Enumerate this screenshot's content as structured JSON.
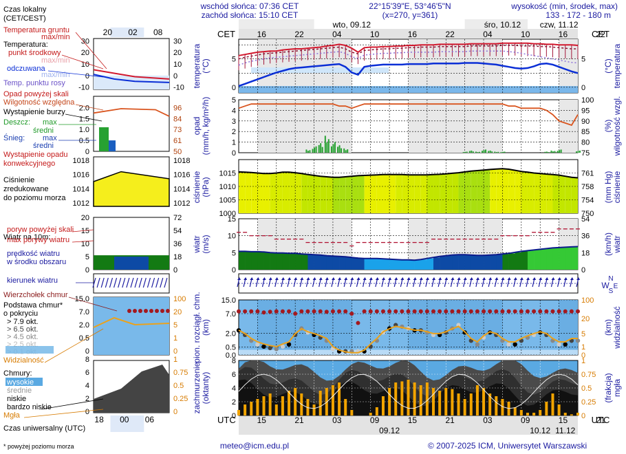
{
  "header": {
    "sunrise": "wschód słońca: 07:36 CET",
    "sunset": "zachód słońca: 15:10 CET",
    "coords": "22°15'39\"E, 53°46'5\"N",
    "grid": "(x=270, y=361)",
    "elev_title": "wysokość (min, środek, max)",
    "elev_values": "133 - 172 - 180 m"
  },
  "footer": {
    "email": "meteo@icm.edu.pl",
    "copyright": "© 2007-2025 ICM, Uniwersytet Warszawski",
    "note": "* powyżej poziomu morza"
  },
  "left_legend": {
    "time_local": [
      "Czas lokalny",
      "(CET/CEST)"
    ],
    "ground_temp": [
      "Temperatura gruntu",
      "max/min"
    ],
    "temperature": "Temperatura:",
    "midpoint": "punkt środkowy",
    "maxmin": "max/min",
    "felt": "odczuwana",
    "felt_maxmin": "max/min",
    "dew": "Temp. punktu rosy",
    "precip_above": "Opad powyżej skali",
    "humidity": "Wilgotność względna",
    "storm": "Wystąpienie burzy",
    "rain": "Deszcz:",
    "snow": "Śnieg:",
    "max": "max",
    "mean": "średni",
    "precip_occurrence": [
      "Wystąpienie opadu",
      "konwekcyjnego"
    ],
    "pressure": [
      "Ciśnienie",
      "zredukowane",
      "do poziomu morza"
    ],
    "wind10": "Wiatr na 10m:",
    "gust_above": "poryw powyżej skali",
    "gust_max": "max porywy wiatru",
    "wind_speed": [
      "prędkość wiatru",
      "w środku obszaru"
    ],
    "wind_dir": "kierunek wiatru",
    "cloud_top": "Wierzchołek chmur",
    "cloud_base": [
      "Podstawa chmur*",
      "o pokryciu"
    ],
    "okta": [
      "> 7.9 okt.",
      "> 6.5 okt.",
      "> 4.5 okt.",
      "> 2.5 okt.",
      "> 0.1 okt."
    ],
    "visibility": "Widzialność",
    "clouds": "Chmury:",
    "high": "wysokie",
    "middle": "średnie",
    "low": "niskie",
    "very_low": "bardzo niskie",
    "fog": "Mgła",
    "utc": "Czas uniwersalny (UTC)",
    "top_hours": [
      "20",
      "02",
      "08"
    ],
    "bottom_hours": [
      "18",
      "00",
      "06"
    ],
    "temp_ticks": [
      "30",
      "20",
      "10",
      "0",
      "-10"
    ],
    "precip_ticks": [
      "2.0",
      "1.5",
      "1.0",
      "0.5",
      "0"
    ],
    "hum_ticks": [
      "96",
      "84",
      "73",
      "61",
      "50"
    ],
    "press_ticks": [
      "1018",
      "1016",
      "1014",
      "1012"
    ],
    "wind_ticks": [
      "20",
      "15",
      "10",
      "5",
      "0"
    ],
    "wind_kmh": [
      "72",
      "54",
      "36",
      "18",
      "0"
    ],
    "cb_ticks": [
      "15.0",
      "7.0",
      "2.0",
      "0.5",
      "0"
    ],
    "vis_ticks": [
      "100",
      "20",
      "5",
      "1",
      "0"
    ],
    "cc_ticks": [
      "8",
      "6",
      "4",
      "2",
      "0"
    ],
    "fog_ticks": [
      "1",
      "0.75",
      "0.5",
      "0.25",
      "0"
    ]
  },
  "main": {
    "cet": "CET",
    "utc": "UTC",
    "days_top": [
      "wto, 09.12",
      "śro, 10.12",
      "czw, 11.12"
    ],
    "days_bottom": [
      "09.12",
      "10.12",
      "11.12"
    ],
    "top_hours": [
      "16",
      "22",
      "04",
      "10",
      "16",
      "22",
      "04",
      "10",
      "16",
      "22",
      "04",
      "10",
      "16"
    ],
    "bottom_hours": [
      "15",
      "21",
      "03",
      "09",
      "15",
      "21",
      "03",
      "09",
      "15",
      "21",
      "03",
      "09",
      "15"
    ],
    "labels": {
      "temp": [
        "temperatura",
        "(°C)"
      ],
      "precip": [
        "opad",
        "(mm/h, kg/m²/h)"
      ],
      "humidity": [
        "wilgotność wzgl.",
        "(%)"
      ],
      "pressure": [
        "ciśnienie",
        "(hPa)"
      ],
      "pressure_mm": [
        "ciśnienie",
        "(mm Hg)"
      ],
      "wind": [
        "wiatr",
        "(m/s)"
      ],
      "wind_kmh": [
        "wiatr",
        "(km/h)"
      ],
      "clouds": [
        "pion. rozciągł. chm.",
        "(km)"
      ],
      "visibility": [
        "widzialność",
        "(km)"
      ],
      "cover": [
        "zachmurzenie",
        "(oktanty)"
      ],
      "fog": [
        "mgła",
        "(frakcja)"
      ]
    },
    "wind_compass": [
      "N",
      "W",
      "E",
      "S"
    ]
  },
  "chart_data": {
    "type": "meteogram",
    "x_hours_utc": {
      "start": 12,
      "end": 66,
      "step": 1
    },
    "night_bands": [
      [
        15,
        30
      ],
      [
        39,
        54
      ],
      [
        63,
        66
      ]
    ],
    "temperature": {
      "ylim": [
        -1,
        8.5
      ],
      "ticks": [
        0,
        5
      ],
      "max": [
        5.6,
        5.8,
        6.0,
        6.2,
        6.3,
        6.4,
        6.4,
        6.6,
        6.7,
        6.8,
        6.8,
        6.9,
        7.0,
        7.1,
        7.3,
        7.4,
        7.6,
        7.4,
        6.9,
        6.2,
        7.0,
        7.1,
        7.1,
        7.2,
        7.2,
        7.3,
        7.3,
        7.4,
        7.4,
        7.5,
        7.5,
        7.5,
        7.6,
        7.6,
        7.6,
        7.6,
        7.6,
        7.7,
        7.7,
        7.7,
        7.7,
        7.7,
        7.8,
        7.8,
        7.8,
        7.8,
        7.8,
        7.7,
        7.7,
        7.6,
        7.6,
        7.5,
        7.5,
        7.5,
        7.4
      ],
      "mid": [
        5.0,
        5.3,
        5.5,
        5.7,
        5.9,
        6.0,
        6.1,
        6.2,
        6.3,
        6.4,
        6.5,
        6.6,
        6.7,
        6.8,
        6.9,
        7.0,
        7.1,
        6.8,
        6.2,
        5.9,
        6.5,
        6.6,
        6.7,
        6.8,
        6.8,
        6.9,
        6.9,
        7.0,
        7.0,
        7.1,
        7.1,
        7.1,
        7.2,
        7.2,
        7.2,
        7.2,
        7.2,
        7.3,
        7.3,
        7.3,
        7.3,
        7.3,
        7.4,
        7.4,
        7.4,
        7.3,
        7.3,
        7.3,
        7.2,
        7.2,
        7.1,
        7.0,
        6.9,
        6.8,
        6.8
      ],
      "min": [
        4.4,
        4.7,
        5.0,
        5.2,
        5.4,
        5.6,
        5.7,
        5.8,
        5.9,
        6.0,
        6.1,
        6.2,
        6.3,
        6.4,
        6.5,
        6.6,
        6.7,
        6.4,
        5.8,
        5.5,
        6.1,
        6.2,
        6.3,
        6.4,
        6.4,
        6.5,
        6.5,
        6.6,
        6.6,
        6.7,
        6.7,
        6.7,
        6.8,
        6.8,
        6.8,
        6.8,
        6.8,
        6.9,
        6.9,
        6.9,
        6.9,
        6.9,
        7.0,
        7.0,
        7.0,
        6.9,
        6.9,
        6.9,
        6.8,
        6.8,
        6.7,
        6.6,
        6.5,
        6.4,
        6.4
      ],
      "felt": [
        0.2,
        0.6,
        1.0,
        1.4,
        1.8,
        2.2,
        2.6,
        2.9,
        3.2,
        3.4,
        3.5,
        3.6,
        3.7,
        3.8,
        3.9,
        4.0,
        4.1,
        3.6,
        2.6,
        2.2,
        3.6,
        3.8,
        3.9,
        4.0,
        4.0,
        4.0,
        4.0,
        4.1,
        4.1,
        4.1,
        4.1,
        4.2,
        4.2,
        4.2,
        4.2,
        4.2,
        4.3,
        4.3,
        4.3,
        4.2,
        4.1,
        4.0,
        3.8,
        3.6,
        3.4,
        3.3,
        3.4,
        3.7,
        4.1,
        4.2,
        4.0,
        3.6,
        3.2,
        2.8,
        2.5
      ],
      "dew": [
        4.5,
        4.9,
        5.2,
        5.4,
        5.6,
        5.8,
        5.9,
        6.0,
        6.1,
        6.2,
        6.3,
        6.4,
        6.5,
        6.6,
        6.7,
        6.8,
        6.9,
        6.6,
        6.0,
        5.7,
        6.3,
        6.4,
        6.5,
        6.6,
        6.6,
        6.7,
        6.7,
        6.8,
        6.8,
        6.8,
        6.8,
        6.8,
        6.9,
        6.9,
        6.9,
        6.9,
        6.9,
        7.0,
        7.0,
        7.0,
        7.0,
        7.0,
        7.0,
        6.9,
        6.8,
        6.6,
        6.4,
        6.2,
        6.0,
        5.8,
        5.6,
        5.4,
        5.2,
        5.0,
        4.9
      ]
    },
    "precipitation": {
      "ylim": [
        0,
        5
      ],
      "ticks": [
        0,
        1,
        2,
        3,
        4,
        5
      ],
      "rain_mean": [
        0,
        0,
        0,
        0,
        0,
        0,
        0,
        0,
        0,
        0,
        0,
        0.3,
        0.6,
        0.9,
        1.6,
        1.0,
        0.7,
        0.4,
        0,
        0,
        0,
        0,
        0,
        0,
        0,
        0,
        0,
        0,
        0,
        0,
        0,
        0,
        0,
        0,
        0,
        0,
        0.1,
        0.2,
        0.1,
        0.3,
        0.2,
        0.1,
        0.1,
        0,
        0,
        0,
        0,
        0,
        0,
        0.1,
        0.2,
        0.3,
        0,
        0,
        0.2
      ]
    },
    "humidity": {
      "ylim": [
        75,
        100
      ],
      "ticks": [
        75,
        80,
        85,
        90,
        95,
        100
      ],
      "values": [
        96,
        97,
        98,
        98,
        98,
        98,
        98,
        98,
        98,
        98,
        98,
        98,
        98,
        98,
        98,
        98,
        97,
        97,
        96,
        97,
        98,
        98,
        98,
        98,
        98,
        98,
        98,
        98,
        98,
        98,
        98,
        98,
        98,
        98,
        98,
        98,
        98,
        98,
        98,
        98,
        98,
        98,
        98,
        97,
        97,
        96,
        96,
        96,
        96,
        95,
        93,
        90,
        89,
        88,
        93
      ]
    },
    "pressure": {
      "ylim": [
        1000,
        1020
      ],
      "ticks": [
        1000,
        1005,
        1010,
        1015
      ],
      "values": [
        1015.4,
        1015.3,
        1015.2,
        1015.0,
        1014.8,
        1014.8,
        1015.0,
        1015.3,
        1015.3,
        1015.1,
        1014.8,
        1014.4,
        1014.1,
        1013.8,
        1013.6,
        1013.4,
        1013.4,
        1013.6,
        1013.8,
        1014.0,
        1014.1,
        1014.2,
        1014.3,
        1014.4,
        1014.4,
        1014.4,
        1014.4,
        1014.3,
        1014.3,
        1014.3,
        1014.3,
        1014.4,
        1014.5,
        1014.7,
        1014.9,
        1015.1,
        1015.4,
        1015.7,
        1015.9,
        1016.1,
        1016.3,
        1016.5,
        1016.6,
        1016.4,
        1016.0,
        1015.6,
        1015.3,
        1015.0,
        1014.8,
        1014.6,
        1014.4,
        1014.2,
        1013.8,
        1013.4,
        1013.2
      ]
    },
    "wind": {
      "ylim": [
        0,
        15
      ],
      "ticks": [
        0,
        5,
        10,
        15
      ],
      "gust_max": [
        11,
        11,
        10,
        10,
        10,
        10,
        9,
        9,
        9,
        9,
        9,
        8,
        8,
        8,
        8,
        8,
        8,
        8,
        7,
        8,
        8,
        8,
        8,
        8,
        8,
        8,
        8,
        8,
        8,
        8,
        8,
        9,
        9,
        9,
        9,
        9,
        9,
        9,
        9,
        9,
        9,
        9,
        10,
        10,
        10,
        10,
        10,
        11,
        11,
        11,
        11,
        12,
        12,
        12,
        12
      ],
      "speed": [
        5.4,
        5.4,
        5.3,
        5.3,
        5.2,
        5.0,
        4.9,
        4.9,
        4.8,
        4.8,
        4.6,
        4.5,
        4.4,
        4.3,
        4.1,
        4.0,
        3.9,
        3.8,
        3.6,
        3.4,
        3.3,
        3.3,
        3.3,
        3.2,
        3.1,
        3.0,
        2.9,
        2.9,
        2.8,
        3.0,
        3.3,
        3.6,
        3.9,
        4.1,
        4.3,
        4.4,
        4.4,
        4.3,
        4.2,
        4.2,
        4.3,
        4.4,
        4.6,
        4.8,
        5.1,
        5.4,
        5.6,
        5.8,
        6.0,
        6.2,
        6.4,
        6.5,
        6.6,
        6.7,
        6.8
      ],
      "direction_deg": 200
    },
    "cloud_top_km": {
      "ylim": [
        0,
        15
      ],
      "values": [
        8,
        8,
        8,
        8,
        7.5,
        7.8,
        8,
        8,
        8,
        7,
        8,
        8,
        8,
        8,
        7.8,
        8,
        8,
        8,
        7,
        4,
        8,
        8,
        8,
        8,
        8,
        8,
        8,
        8,
        8,
        8,
        8,
        8,
        8,
        8,
        8,
        8,
        8,
        8,
        8,
        8,
        8,
        8,
        8,
        8,
        8,
        8,
        8,
        8,
        8,
        8,
        8,
        8,
        8,
        8,
        8
      ]
    },
    "visibility_km": {
      "ticks": [
        0,
        1,
        5,
        20,
        100
      ],
      "values": [
        7,
        5,
        3,
        2,
        1.5,
        1.2,
        1.0,
        1.5,
        2,
        5,
        8,
        6,
        5,
        4,
        3,
        1,
        0.5,
        0.3,
        0.2,
        0.2,
        0.5,
        1.5,
        3,
        6,
        8,
        10,
        9,
        8,
        7,
        7,
        6,
        5,
        5,
        6,
        8,
        10,
        6,
        3,
        2,
        4,
        6,
        5,
        3,
        2,
        2,
        3,
        4,
        5,
        6,
        5,
        3,
        2,
        2,
        3,
        3
      ]
    },
    "cloud_cover_okta": {
      "ylim": [
        0,
        8
      ],
      "ticks": [
        0,
        2,
        4,
        6,
        8
      ]
    },
    "fog_fraction": {
      "ylim": [
        0,
        1
      ],
      "ticks": [
        0,
        0.25,
        0.5,
        0.75,
        1
      ],
      "values": [
        0.1,
        0.2,
        0.25,
        0.3,
        0.35,
        0.4,
        0.2,
        0.35,
        0.45,
        0.5,
        0.4,
        0.3,
        0.2,
        0.45,
        0.5,
        0.55,
        0.6,
        0.3,
        0.1,
        0,
        0,
        0.05,
        0.15,
        0.35,
        0.5,
        0.6,
        0.62,
        0.65,
        0.6,
        0.55,
        0.6,
        0.5,
        0.45,
        0.5,
        0.48,
        0.4,
        0.3,
        0.4,
        0.55,
        0.5,
        0.4,
        0.35,
        0.3,
        0.25,
        0.15,
        0.1,
        0.05,
        0.05,
        0.1,
        0.25,
        0.4,
        0.2,
        0.05,
        0.02,
        0.05
      ]
    }
  }
}
